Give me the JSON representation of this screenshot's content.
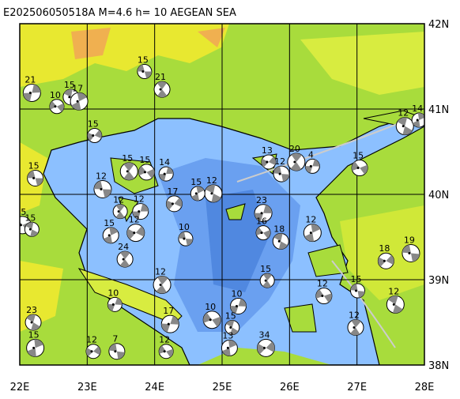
{
  "map": {
    "title": "E202506050518A M=4.6 h= 10 AEGEAN SEA",
    "xlim": [
      22,
      28
    ],
    "ylim": [
      38,
      42
    ],
    "xticks": [
      {
        "value": 22,
        "label": "22E"
      },
      {
        "value": 23,
        "label": "23E"
      },
      {
        "value": 24,
        "label": "24E"
      },
      {
        "value": 25,
        "label": "25E"
      },
      {
        "value": 26,
        "label": "26E"
      },
      {
        "value": 27,
        "label": "27E"
      },
      {
        "value": 28,
        "label": "28E"
      }
    ],
    "yticks": [
      {
        "value": 38,
        "label": "38N"
      },
      {
        "value": 39,
        "label": "39N"
      },
      {
        "value": 40,
        "label": "40N"
      },
      {
        "value": 41,
        "label": "41N"
      },
      {
        "value": 42,
        "label": "42N"
      }
    ],
    "events": [
      {
        "lon": 23.85,
        "lat": 41.44,
        "depth": 15
      },
      {
        "lon": 24.11,
        "lat": 41.23,
        "depth": 21
      },
      {
        "lon": 22.18,
        "lat": 41.19,
        "depth": 21
      },
      {
        "lon": 22.55,
        "lat": 41.03,
        "depth": 10
      },
      {
        "lon": 22.76,
        "lat": 41.14,
        "depth": 15
      },
      {
        "lon": 22.88,
        "lat": 41.09,
        "depth": 17
      },
      {
        "lon": 23.11,
        "lat": 40.69,
        "depth": 15
      },
      {
        "lon": 22.23,
        "lat": 40.19,
        "depth": 15
      },
      {
        "lon": 23.62,
        "lat": 40.27,
        "depth": 15
      },
      {
        "lon": 24.17,
        "lat": 40.24,
        "depth": 14
      },
      {
        "lon": 23.88,
        "lat": 40.26,
        "depth": 15
      },
      {
        "lon": 24.87,
        "lat": 40.01,
        "depth": 12
      },
      {
        "lon": 24.64,
        "lat": 40.01,
        "depth": 15
      },
      {
        "lon": 24.29,
        "lat": 39.89,
        "depth": 17
      },
      {
        "lon": 23.23,
        "lat": 40.06,
        "depth": 12
      },
      {
        "lon": 23.49,
        "lat": 39.8,
        "depth": 12
      },
      {
        "lon": 23.79,
        "lat": 39.8,
        "depth": 12
      },
      {
        "lon": 22.04,
        "lat": 39.64,
        "depth": 15
      },
      {
        "lon": 22.18,
        "lat": 39.59,
        "depth": 15
      },
      {
        "lon": 23.35,
        "lat": 39.52,
        "depth": 15
      },
      {
        "lon": 23.72,
        "lat": 39.55,
        "depth": 12
      },
      {
        "lon": 24.46,
        "lat": 39.48,
        "depth": 10
      },
      {
        "lon": 23.56,
        "lat": 39.24,
        "depth": 24
      },
      {
        "lon": 25.61,
        "lat": 39.78,
        "depth": 23
      },
      {
        "lon": 25.61,
        "lat": 39.55,
        "depth": 16
      },
      {
        "lon": 25.87,
        "lat": 39.45,
        "depth": 18
      },
      {
        "lon": 26.34,
        "lat": 39.55,
        "depth": 12
      },
      {
        "lon": 25.69,
        "lat": 40.38,
        "depth": 13
      },
      {
        "lon": 25.88,
        "lat": 40.24,
        "depth": 12
      },
      {
        "lon": 26.1,
        "lat": 40.38,
        "depth": 20
      },
      {
        "lon": 26.34,
        "lat": 40.33,
        "depth": 4
      },
      {
        "lon": 27.04,
        "lat": 40.31,
        "depth": 15
      },
      {
        "lon": 27.71,
        "lat": 40.8,
        "depth": 12
      },
      {
        "lon": 27.92,
        "lat": 40.87,
        "depth": 14
      },
      {
        "lon": 27.43,
        "lat": 39.22,
        "depth": 18
      },
      {
        "lon": 27.8,
        "lat": 39.31,
        "depth": 19
      },
      {
        "lon": 25.67,
        "lat": 38.99,
        "depth": 15
      },
      {
        "lon": 25.24,
        "lat": 38.69,
        "depth": 10
      },
      {
        "lon": 24.85,
        "lat": 38.53,
        "depth": 10
      },
      {
        "lon": 25.15,
        "lat": 38.44,
        "depth": 15
      },
      {
        "lon": 25.11,
        "lat": 38.2,
        "depth": 13
      },
      {
        "lon": 25.65,
        "lat": 38.2,
        "depth": 34
      },
      {
        "lon": 27.01,
        "lat": 38.87,
        "depth": 15
      },
      {
        "lon": 26.98,
        "lat": 38.44,
        "depth": 12
      },
      {
        "lon": 24.23,
        "lat": 38.48,
        "depth": 17
      },
      {
        "lon": 24.17,
        "lat": 38.16,
        "depth": 12
      },
      {
        "lon": 22.2,
        "lat": 38.5,
        "depth": 23
      },
      {
        "lon": 22.23,
        "lat": 38.2,
        "depth": 15
      },
      {
        "lon": 23.09,
        "lat": 38.16,
        "depth": 12
      },
      {
        "lon": 23.44,
        "lat": 38.16,
        "depth": 7
      },
      {
        "lon": 24.11,
        "lat": 38.94,
        "depth": 12
      },
      {
        "lon": 23.41,
        "lat": 38.71,
        "depth": 10
      },
      {
        "lon": 26.51,
        "lat": 38.81,
        "depth": 12
      },
      {
        "lon": 27.57,
        "lat": 38.71,
        "depth": 12
      }
    ]
  }
}
